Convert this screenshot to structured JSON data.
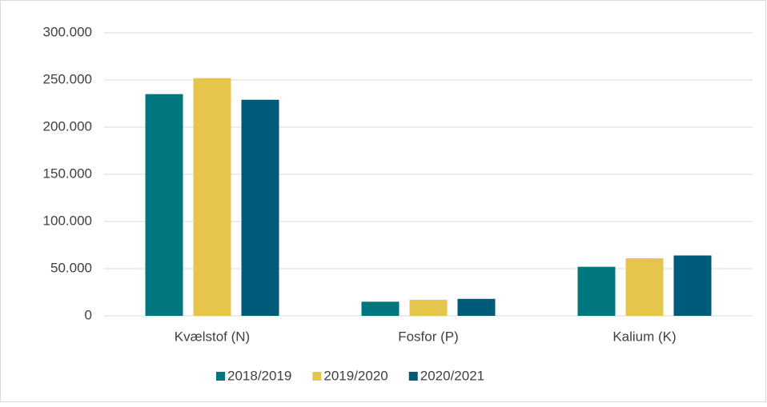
{
  "chart_data": {
    "type": "bar",
    "categories": [
      "Kvælstof (N)",
      "Fosfor (P)",
      "Kalium (K)"
    ],
    "series": [
      {
        "name": "2018/2019",
        "color": "#00777f",
        "values": [
          235000,
          15000,
          52000
        ]
      },
      {
        "name": "2019/2020",
        "color": "#e6c54d",
        "values": [
          252000,
          17000,
          61000
        ]
      },
      {
        "name": "2020/2021",
        "color": "#005a7a",
        "values": [
          229000,
          18000,
          64000
        ]
      }
    ],
    "ylim": [
      0,
      300000
    ],
    "yticks": [
      0,
      {
        "value": 50000,
        "label": "50.000"
      },
      {
        "value": 100000,
        "label": "100.000"
      },
      {
        "value": 150000,
        "label": "150.000"
      },
      {
        "value": 200000,
        "label": "200.000"
      },
      {
        "value": 250000,
        "label": "250.000"
      },
      {
        "value": 300000,
        "label": "300.000"
      }
    ],
    "grid": true,
    "legend": "bottom"
  }
}
